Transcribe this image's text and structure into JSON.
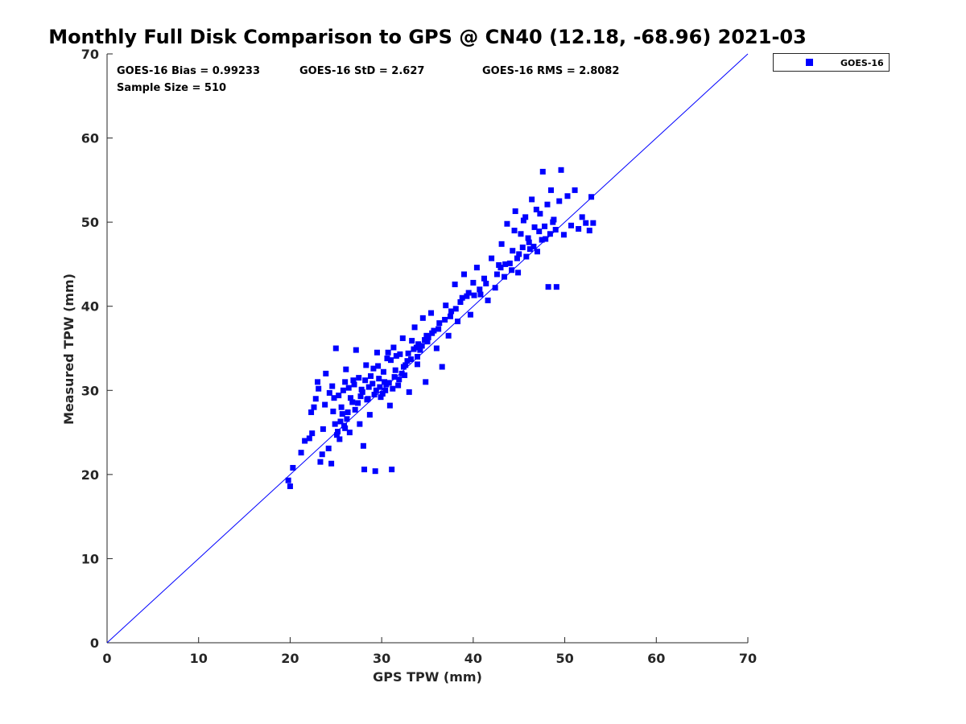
{
  "chart_data": {
    "type": "scatter",
    "title": "Monthly Full Disk Comparison to GPS @ CN40 (12.18, -68.96) 2021-03",
    "xlabel": "GPS TPW (mm)",
    "ylabel": "Measured TPW (mm)",
    "xlim": [
      0,
      70
    ],
    "ylim": [
      0,
      70
    ],
    "xticks": [
      0,
      10,
      20,
      30,
      40,
      50,
      60,
      70
    ],
    "yticks": [
      0,
      10,
      20,
      30,
      40,
      50,
      60,
      70
    ],
    "grid": false,
    "legend_position": "outside-top-right",
    "reference_line": {
      "x": [
        0,
        70
      ],
      "y": [
        0,
        70
      ],
      "color": "#0000ff"
    },
    "stats": {
      "bias": "GOES-16 Bias = 0.99233",
      "std": "GOES-16 StD = 2.627",
      "rms": "GOES-16 RMS = 2.8082",
      "sample_size": "Sample Size = 510"
    },
    "series": [
      {
        "name": "GOES-16",
        "color": "#0000ff",
        "marker": "square",
        "points": [
          [
            19.8,
            19.3
          ],
          [
            20.0,
            18.6
          ],
          [
            20.3,
            20.8
          ],
          [
            21.2,
            22.6
          ],
          [
            21.6,
            24.0
          ],
          [
            22.1,
            24.3
          ],
          [
            22.3,
            27.4
          ],
          [
            22.6,
            28.0
          ],
          [
            22.4,
            24.9
          ],
          [
            22.8,
            29.0
          ],
          [
            23.0,
            31.0
          ],
          [
            23.1,
            30.2
          ],
          [
            23.3,
            21.5
          ],
          [
            23.6,
            25.4
          ],
          [
            23.5,
            22.4
          ],
          [
            23.9,
            32.0
          ],
          [
            24.2,
            23.1
          ],
          [
            24.5,
            21.3
          ],
          [
            24.6,
            30.5
          ],
          [
            24.8,
            29.1
          ],
          [
            25.0,
            35.0
          ],
          [
            24.9,
            26.0
          ],
          [
            25.2,
            25.1
          ],
          [
            25.4,
            24.2
          ],
          [
            25.6,
            28.0
          ],
          [
            25.8,
            30.0
          ],
          [
            26.0,
            25.5
          ],
          [
            26.1,
            32.5
          ],
          [
            26.3,
            27.4
          ],
          [
            26.6,
            29.1
          ],
          [
            26.9,
            31.2
          ],
          [
            27.2,
            34.8
          ],
          [
            27.4,
            28.5
          ],
          [
            27.6,
            26.0
          ],
          [
            27.8,
            30.1
          ],
          [
            28.0,
            23.4
          ],
          [
            28.1,
            20.6
          ],
          [
            28.3,
            33.0
          ],
          [
            28.5,
            29.0
          ],
          [
            28.7,
            27.1
          ],
          [
            29.0,
            30.8
          ],
          [
            29.3,
            20.4
          ],
          [
            29.5,
            34.5
          ],
          [
            29.7,
            31.4
          ],
          [
            29.9,
            29.2
          ],
          [
            30.2,
            32.2
          ],
          [
            30.4,
            30.0
          ],
          [
            30.6,
            33.8
          ],
          [
            30.9,
            28.2
          ],
          [
            31.1,
            20.6
          ],
          [
            31.3,
            35.1
          ],
          [
            31.5,
            32.4
          ],
          [
            31.8,
            30.6
          ],
          [
            32.0,
            34.3
          ],
          [
            32.3,
            36.2
          ],
          [
            32.5,
            31.8
          ],
          [
            32.8,
            33.5
          ],
          [
            33.0,
            29.8
          ],
          [
            33.3,
            35.9
          ],
          [
            33.6,
            37.5
          ],
          [
            33.9,
            33.1
          ],
          [
            34.2,
            34.8
          ],
          [
            34.5,
            38.6
          ],
          [
            34.8,
            31.0
          ],
          [
            35.1,
            36.3
          ],
          [
            35.4,
            39.2
          ],
          [
            35.7,
            37.1
          ],
          [
            36.0,
            35.0
          ],
          [
            36.3,
            38.0
          ],
          [
            36.6,
            32.8
          ],
          [
            37.0,
            40.1
          ],
          [
            37.3,
            36.5
          ],
          [
            37.6,
            39.4
          ],
          [
            38.0,
            42.6
          ],
          [
            38.3,
            38.2
          ],
          [
            38.6,
            40.5
          ],
          [
            39.0,
            43.8
          ],
          [
            39.3,
            41.2
          ],
          [
            39.7,
            39.0
          ],
          [
            40.0,
            42.8
          ],
          [
            40.4,
            44.6
          ],
          [
            40.8,
            41.4
          ],
          [
            41.2,
            43.3
          ],
          [
            41.6,
            40.7
          ],
          [
            42.0,
            45.7
          ],
          [
            42.4,
            42.2
          ],
          [
            42.8,
            44.9
          ],
          [
            43.1,
            47.4
          ],
          [
            43.4,
            43.5
          ],
          [
            43.7,
            49.8
          ],
          [
            44.0,
            45.1
          ],
          [
            44.3,
            46.6
          ],
          [
            44.6,
            51.3
          ],
          [
            44.9,
            44.0
          ],
          [
            45.2,
            48.6
          ],
          [
            45.5,
            50.2
          ],
          [
            45.8,
            45.9
          ],
          [
            46.1,
            47.6
          ],
          [
            46.4,
            52.7
          ],
          [
            46.7,
            49.4
          ],
          [
            47.0,
            46.5
          ],
          [
            47.3,
            51.0
          ],
          [
            47.6,
            56.0
          ],
          [
            47.9,
            48.0
          ],
          [
            48.2,
            42.3
          ],
          [
            48.5,
            53.8
          ],
          [
            48.8,
            50.3
          ],
          [
            49.1,
            42.3
          ],
          [
            49.4,
            52.5
          ],
          [
            49.6,
            56.2
          ],
          [
            49.9,
            48.5
          ],
          [
            50.3,
            53.1
          ],
          [
            50.7,
            49.6
          ],
          [
            51.1,
            53.8
          ],
          [
            51.5,
            49.2
          ],
          [
            51.9,
            50.6
          ],
          [
            52.3,
            49.9
          ],
          [
            52.7,
            49.0
          ],
          [
            52.9,
            53.0
          ],
          [
            53.1,
            49.9
          ],
          [
            26.0,
            31.0
          ],
          [
            27.5,
            31.5
          ],
          [
            28.2,
            31.2
          ],
          [
            29.1,
            32.6
          ],
          [
            30.3,
            31.0
          ],
          [
            31.0,
            33.6
          ],
          [
            31.6,
            34.1
          ],
          [
            32.6,
            33.0
          ],
          [
            33.8,
            35.1
          ],
          [
            34.7,
            36.0
          ],
          [
            28.6,
            30.4
          ],
          [
            29.4,
            30.0
          ],
          [
            30.1,
            29.6
          ],
          [
            30.8,
            30.9
          ],
          [
            31.4,
            31.6
          ],
          [
            32.2,
            32.0
          ],
          [
            32.9,
            34.4
          ],
          [
            33.5,
            34.9
          ],
          [
            34.0,
            35.5
          ],
          [
            34.9,
            36.5
          ],
          [
            35.5,
            36.8
          ],
          [
            36.2,
            37.3
          ],
          [
            36.9,
            38.4
          ],
          [
            37.5,
            38.8
          ],
          [
            38.1,
            39.7
          ],
          [
            38.8,
            41.0
          ],
          [
            39.5,
            41.6
          ],
          [
            40.1,
            41.3
          ],
          [
            40.7,
            42.0
          ],
          [
            41.4,
            42.7
          ],
          [
            25.5,
            26.3
          ],
          [
            25.9,
            25.8
          ],
          [
            26.2,
            26.6
          ],
          [
            26.5,
            25.0
          ],
          [
            25.1,
            24.7
          ],
          [
            25.7,
            27.2
          ],
          [
            26.8,
            28.6
          ],
          [
            27.1,
            27.7
          ],
          [
            27.7,
            29.3
          ],
          [
            28.4,
            28.9
          ],
          [
            29.2,
            29.5
          ],
          [
            29.8,
            30.4
          ],
          [
            30.5,
            30.7
          ],
          [
            31.2,
            30.2
          ],
          [
            31.9,
            31.3
          ],
          [
            32.4,
            32.8
          ],
          [
            33.2,
            33.7
          ],
          [
            33.9,
            34.0
          ],
          [
            34.4,
            35.3
          ],
          [
            35.0,
            35.8
          ],
          [
            43.5,
            45.0
          ],
          [
            44.2,
            44.3
          ],
          [
            44.8,
            45.7
          ],
          [
            45.4,
            47.0
          ],
          [
            46.0,
            48.1
          ],
          [
            46.6,
            47.1
          ],
          [
            47.2,
            48.9
          ],
          [
            47.8,
            49.5
          ],
          [
            48.4,
            48.6
          ],
          [
            49.0,
            49.1
          ],
          [
            42.6,
            43.8
          ],
          [
            43.0,
            44.6
          ],
          [
            45.0,
            46.2
          ],
          [
            46.2,
            46.8
          ],
          [
            47.5,
            47.9
          ],
          [
            48.7,
            50.0
          ],
          [
            44.5,
            49.0
          ],
          [
            45.7,
            50.6
          ],
          [
            46.9,
            51.5
          ],
          [
            48.1,
            52.1
          ],
          [
            23.8,
            28.3
          ],
          [
            24.3,
            29.7
          ],
          [
            24.7,
            27.5
          ],
          [
            25.3,
            29.4
          ],
          [
            26.4,
            30.3
          ],
          [
            27.0,
            30.7
          ],
          [
            27.9,
            29.8
          ],
          [
            28.8,
            31.7
          ],
          [
            29.6,
            32.9
          ],
          [
            30.7,
            34.5
          ]
        ]
      }
    ]
  }
}
